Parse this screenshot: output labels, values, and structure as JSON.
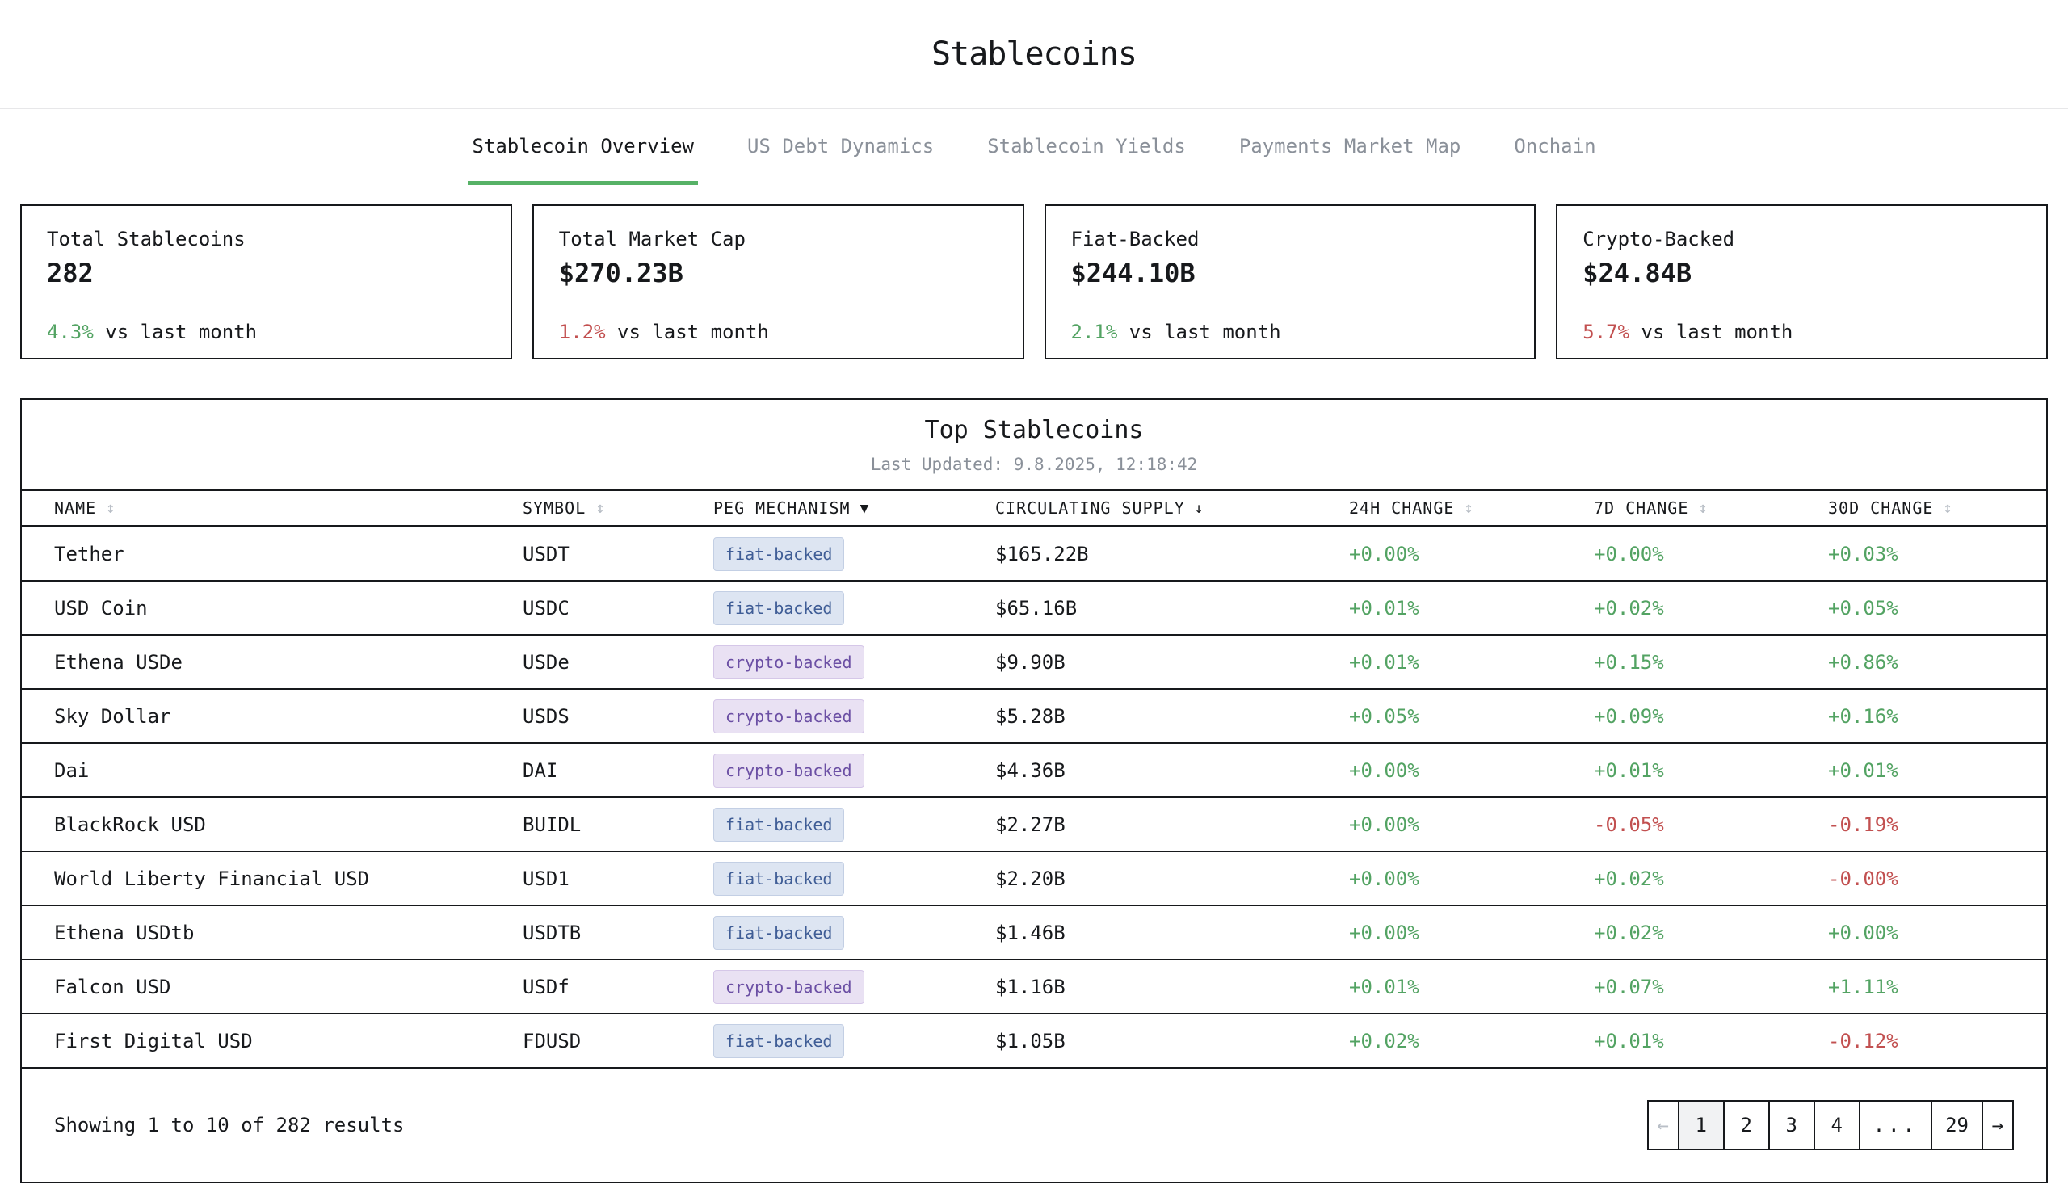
{
  "page_title": "Stablecoins",
  "tabs": [
    {
      "label": "Stablecoin Overview",
      "active": true
    },
    {
      "label": "US Debt Dynamics",
      "active": false
    },
    {
      "label": "Stablecoin Yields",
      "active": false
    },
    {
      "label": "Payments Market Map",
      "active": false
    },
    {
      "label": "Onchain",
      "active": false
    }
  ],
  "stats": [
    {
      "label": "Total Stablecoins",
      "value": "282",
      "change": "4.3%",
      "trend": "up",
      "suffix": "vs last month"
    },
    {
      "label": "Total Market Cap",
      "value": "$270.23B",
      "change": "1.2%",
      "trend": "down",
      "suffix": "vs last month"
    },
    {
      "label": "Fiat-Backed",
      "value": "$244.10B",
      "change": "2.1%",
      "trend": "up",
      "suffix": "vs last month"
    },
    {
      "label": "Crypto-Backed",
      "value": "$24.84B",
      "change": "5.7%",
      "trend": "down",
      "suffix": "vs last month"
    }
  ],
  "table": {
    "title": "Top Stablecoins",
    "last_updated": "Last Updated: 9.8.2025, 12:18:42",
    "columns": [
      {
        "label": "NAME",
        "sort_icon": "updown"
      },
      {
        "label": "SYMBOL",
        "sort_icon": "updown"
      },
      {
        "label": "PEG MECHANISM",
        "sort_icon": "triangle-down"
      },
      {
        "label": "CIRCULATING SUPPLY",
        "sort_icon": "arrow-down"
      },
      {
        "label": "24H CHANGE",
        "sort_icon": "updown"
      },
      {
        "label": "7D CHANGE",
        "sort_icon": "updown"
      },
      {
        "label": "30D CHANGE",
        "sort_icon": "updown"
      }
    ],
    "rows": [
      {
        "name": "Tether",
        "symbol": "USDT",
        "peg": "fiat-backed",
        "supply": "$165.22B",
        "change_24h": "+0.00%",
        "change_7d": "+0.00%",
        "change_30d": "+0.03%"
      },
      {
        "name": "USD Coin",
        "symbol": "USDC",
        "peg": "fiat-backed",
        "supply": "$65.16B",
        "change_24h": "+0.01%",
        "change_7d": "+0.02%",
        "change_30d": "+0.05%"
      },
      {
        "name": "Ethena USDe",
        "symbol": "USDe",
        "peg": "crypto-backed",
        "supply": "$9.90B",
        "change_24h": "+0.01%",
        "change_7d": "+0.15%",
        "change_30d": "+0.86%"
      },
      {
        "name": "Sky Dollar",
        "symbol": "USDS",
        "peg": "crypto-backed",
        "supply": "$5.28B",
        "change_24h": "+0.05%",
        "change_7d": "+0.09%",
        "change_30d": "+0.16%"
      },
      {
        "name": "Dai",
        "symbol": "DAI",
        "peg": "crypto-backed",
        "supply": "$4.36B",
        "change_24h": "+0.00%",
        "change_7d": "+0.01%",
        "change_30d": "+0.01%"
      },
      {
        "name": "BlackRock USD",
        "symbol": "BUIDL",
        "peg": "fiat-backed",
        "supply": "$2.27B",
        "change_24h": "+0.00%",
        "change_7d": "-0.05%",
        "change_30d": "-0.19%"
      },
      {
        "name": "World Liberty Financial USD",
        "symbol": "USD1",
        "peg": "fiat-backed",
        "supply": "$2.20B",
        "change_24h": "+0.00%",
        "change_7d": "+0.02%",
        "change_30d": "-0.00%"
      },
      {
        "name": "Ethena USDtb",
        "symbol": "USDTB",
        "peg": "fiat-backed",
        "supply": "$1.46B",
        "change_24h": "+0.00%",
        "change_7d": "+0.02%",
        "change_30d": "+0.00%"
      },
      {
        "name": "Falcon USD",
        "symbol": "USDf",
        "peg": "crypto-backed",
        "supply": "$1.16B",
        "change_24h": "+0.01%",
        "change_7d": "+0.07%",
        "change_30d": "+1.11%"
      },
      {
        "name": "First Digital USD",
        "symbol": "FDUSD",
        "peg": "fiat-backed",
        "supply": "$1.05B",
        "change_24h": "+0.02%",
        "change_7d": "+0.01%",
        "change_30d": "-0.12%"
      }
    ]
  },
  "pagination": {
    "summary": "Showing 1 to 10 of 282 results",
    "buttons": [
      {
        "label": "←",
        "kind": "prev",
        "disabled": true
      },
      {
        "label": "1",
        "kind": "page",
        "current": true
      },
      {
        "label": "2",
        "kind": "page"
      },
      {
        "label": "3",
        "kind": "page"
      },
      {
        "label": "4",
        "kind": "page"
      },
      {
        "label": "...",
        "kind": "ellipsis"
      },
      {
        "label": "29",
        "kind": "page"
      },
      {
        "label": "→",
        "kind": "next"
      }
    ]
  },
  "icons": {
    "updown": "↕",
    "triangle-down": "▼",
    "arrow-down": "↓"
  },
  "colors": {
    "positive": "#53a363",
    "negative": "#c25050",
    "tab_underline": "#57b267",
    "fiat_badge_bg": "#dde5f2",
    "fiat_badge_text": "#3f5d96",
    "crypto_badge_bg": "#e9e1f3",
    "crypto_badge_text": "#6b4fa4"
  }
}
